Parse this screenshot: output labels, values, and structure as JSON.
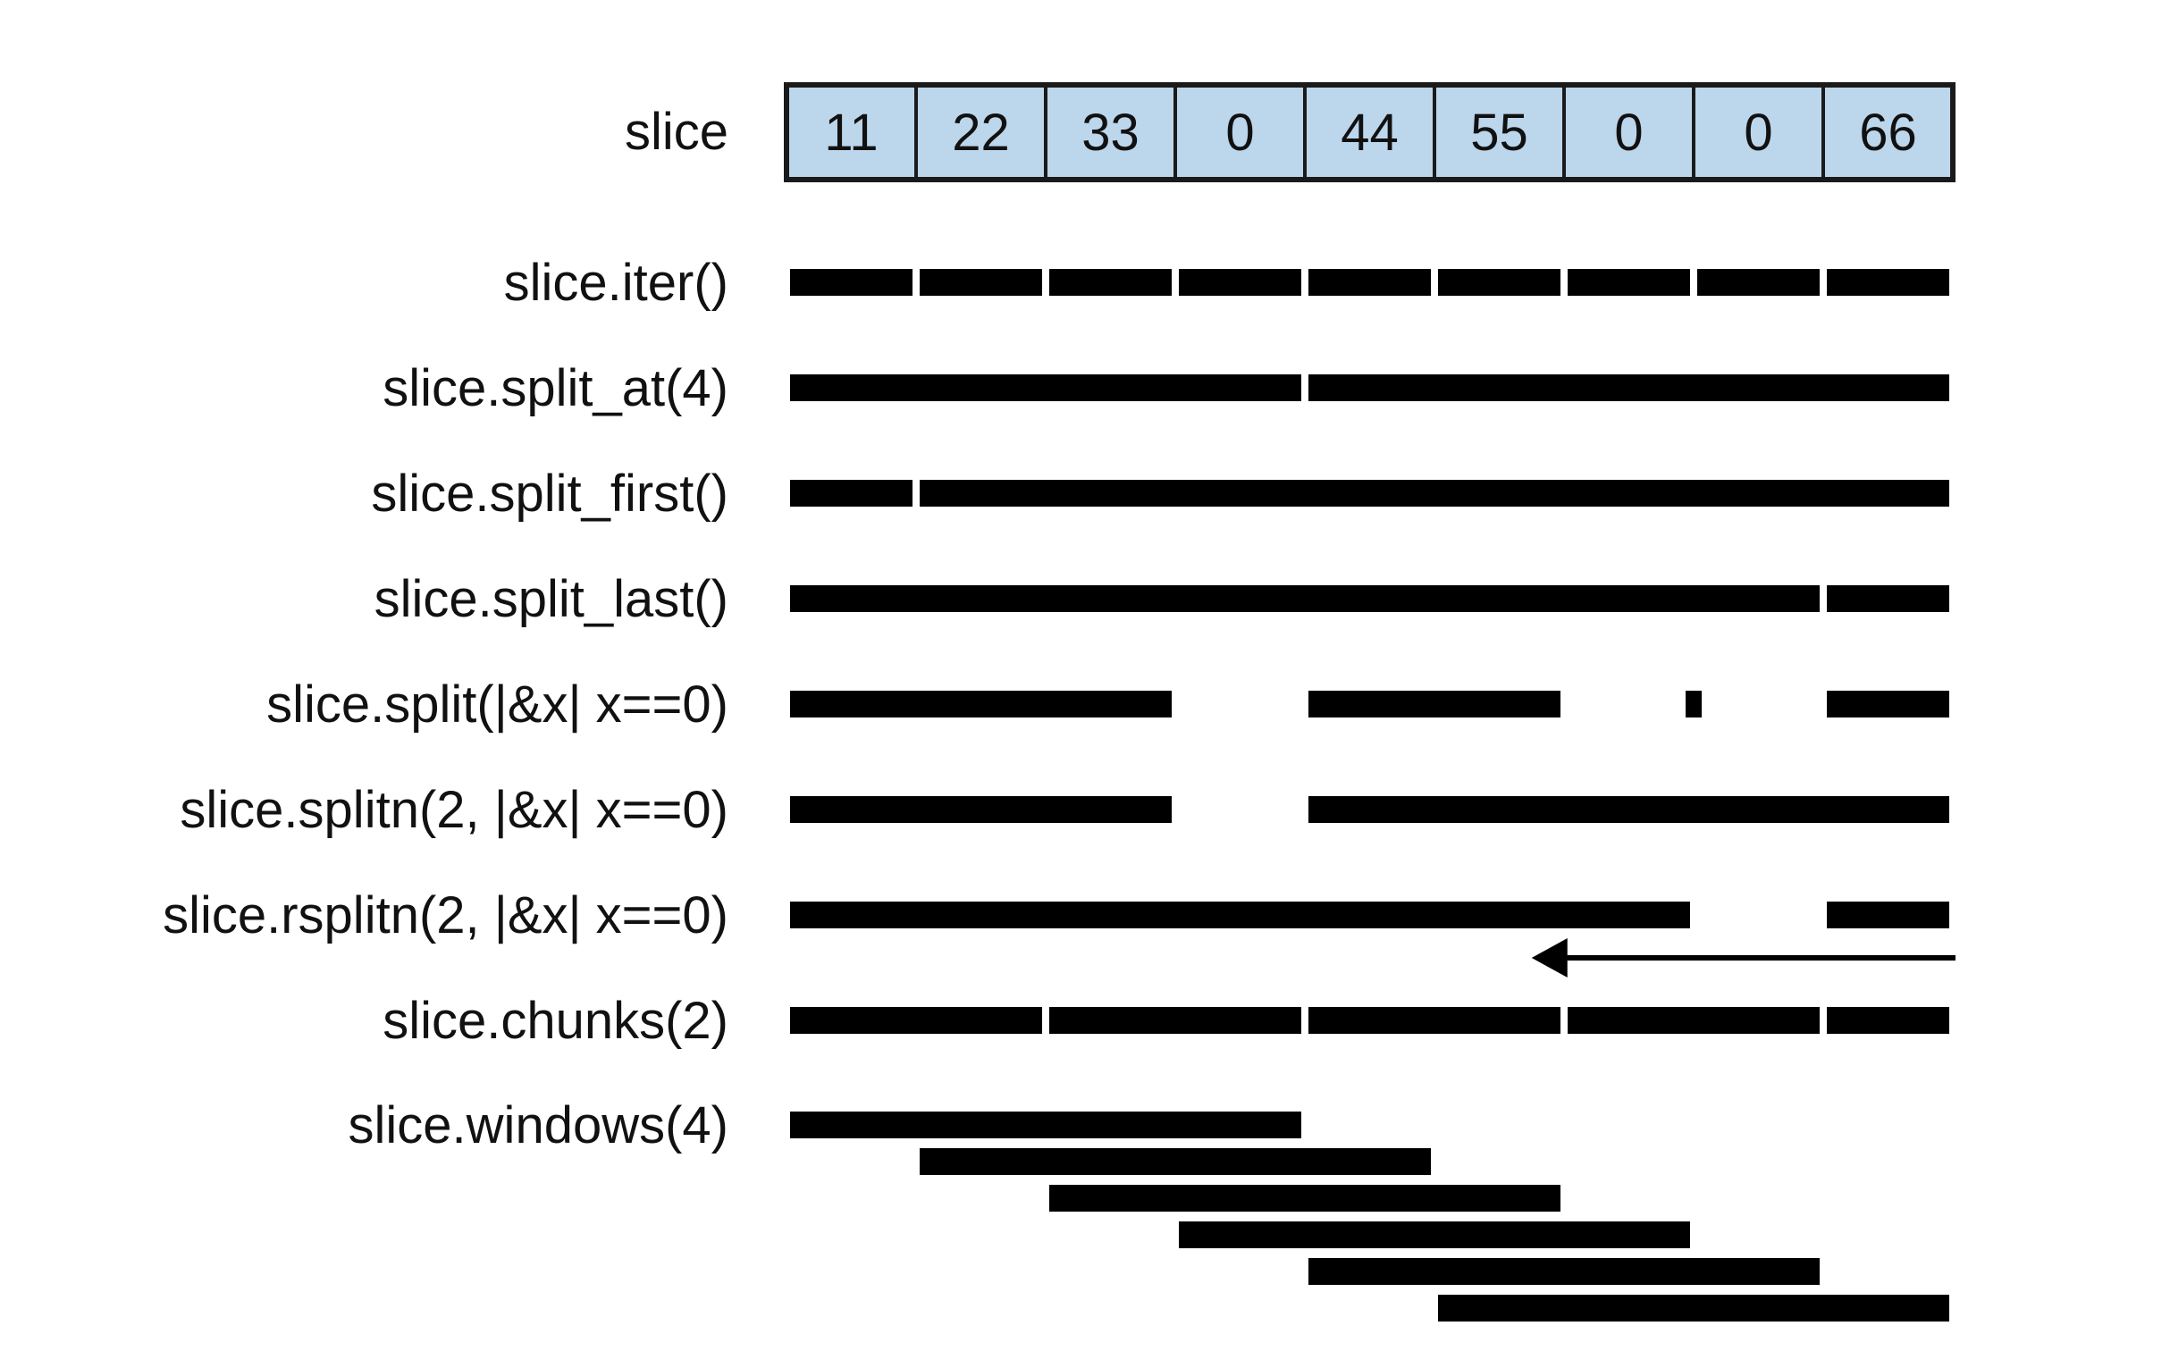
{
  "slice": {
    "label": "slice",
    "values": [
      "11",
      "22",
      "33",
      "0",
      "44",
      "55",
      "0",
      "0",
      "66"
    ]
  },
  "rows": [
    {
      "label": "slice.iter()",
      "segments": [
        [
          0,
          1
        ],
        [
          1,
          2
        ],
        [
          2,
          3
        ],
        [
          3,
          4
        ],
        [
          4,
          5
        ],
        [
          5,
          6
        ],
        [
          6,
          7
        ],
        [
          7,
          8
        ],
        [
          8,
          9
        ]
      ]
    },
    {
      "label": "slice.split_at(4)",
      "segments": [
        [
          0,
          4
        ],
        [
          4,
          9
        ]
      ]
    },
    {
      "label": "slice.split_first()",
      "segments": [
        [
          0,
          1
        ],
        [
          1,
          9
        ]
      ]
    },
    {
      "label": "slice.split_last()",
      "segments": [
        [
          0,
          8
        ],
        [
          8,
          9
        ]
      ]
    },
    {
      "label": "slice.split(|&x| x==0)",
      "segments": [
        [
          0,
          3
        ],
        [
          4,
          6
        ],
        [
          7,
          7
        ],
        [
          8,
          9
        ]
      ]
    },
    {
      "label": "slice.splitn(2, |&x| x==0)",
      "segments": [
        [
          0,
          3
        ],
        [
          4,
          9
        ]
      ]
    },
    {
      "label": "slice.rsplitn(2, |&x| x==0)",
      "segments": [
        [
          0,
          7
        ],
        [
          8,
          9
        ]
      ],
      "direction": "right-to-left"
    },
    {
      "label": "slice.chunks(2)",
      "segments": [
        [
          0,
          2
        ],
        [
          2,
          4
        ],
        [
          4,
          6
        ],
        [
          6,
          8
        ],
        [
          8,
          9
        ]
      ]
    },
    {
      "label": "slice.windows(4)",
      "windows": [
        [
          0,
          4
        ],
        [
          1,
          5
        ],
        [
          2,
          6
        ],
        [
          3,
          7
        ],
        [
          4,
          8
        ],
        [
          5,
          9
        ]
      ]
    }
  ],
  "colors": {
    "cell_fill": "#bcd6ec",
    "bar": "#000000",
    "text": "#111111"
  }
}
